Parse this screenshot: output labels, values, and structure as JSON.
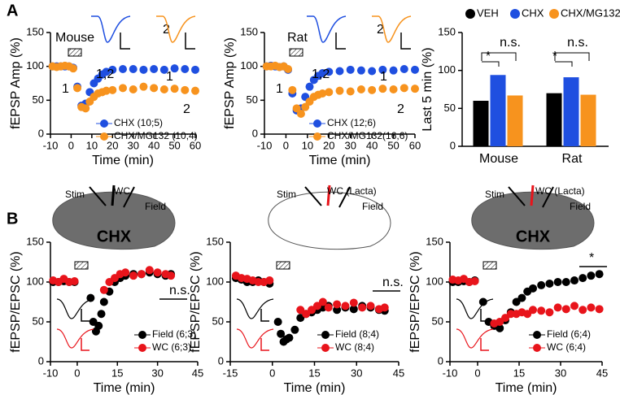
{
  "panel_labels": [
    "A",
    "B"
  ],
  "chart_data": [
    {
      "type": "scatter",
      "ylabel": "fEPSP Amp (%)",
      "xlabel": "Time (min)",
      "xlim": [
        -10,
        60
      ],
      "xticks": [
        -10,
        0,
        10,
        20,
        30,
        40,
        50,
        60
      ],
      "ylim": [
        0,
        150
      ],
      "yticks": [
        0,
        50,
        100,
        150
      ],
      "annotations": [
        "Mouse",
        "1,2",
        "2",
        "1",
        "1",
        "2"
      ],
      "x": [
        -9,
        -7,
        -5,
        -3,
        -1,
        1,
        3,
        5,
        7,
        9,
        11,
        13,
        15,
        17,
        20,
        25,
        30,
        35,
        40,
        45,
        50,
        55,
        60
      ],
      "series": [
        {
          "name": "CHX (10;5)",
          "color": "#1f4fe0",
          "values": [
            100,
            100,
            100,
            100,
            100,
            98,
            70,
            42,
            45,
            62,
            75,
            82,
            88,
            92,
            95,
            96,
            96,
            95,
            96,
            95,
            97,
            96,
            95
          ]
        },
        {
          "name": "CHX/MG132 (10;4)",
          "color": "#f7931e",
          "values": [
            100,
            99,
            100,
            101,
            100,
            97,
            68,
            40,
            38,
            48,
            55,
            60,
            62,
            64,
            65,
            68,
            66,
            70,
            68,
            66,
            67,
            65,
            64
          ]
        }
      ]
    },
    {
      "type": "scatter",
      "ylabel": "fEPSP Amp (%)",
      "xlabel": "Time (min)",
      "xlim": [
        -10,
        60
      ],
      "xticks": [
        -10,
        0,
        10,
        20,
        30,
        40,
        50,
        60
      ],
      "ylim": [
        0,
        150
      ],
      "yticks": [
        0,
        50,
        100,
        150
      ],
      "annotations": [
        "Rat",
        "1,2",
        "2",
        "1",
        "1",
        "2"
      ],
      "x": [
        -9,
        -7,
        -5,
        -3,
        -1,
        1,
        3,
        5,
        7,
        9,
        11,
        13,
        15,
        17,
        20,
        25,
        30,
        35,
        40,
        45,
        50,
        55,
        60
      ],
      "series": [
        {
          "name": "CHX (12;6)",
          "color": "#1f4fe0",
          "values": [
            100,
            101,
            100,
            99,
            100,
            95,
            60,
            35,
            38,
            55,
            70,
            80,
            86,
            90,
            92,
            93,
            95,
            94,
            93,
            95,
            94,
            96,
            95
          ]
        },
        {
          "name": "CHX/MG132(16;6)",
          "color": "#f7931e",
          "values": [
            100,
            100,
            101,
            99,
            100,
            96,
            65,
            38,
            30,
            40,
            48,
            55,
            58,
            60,
            62,
            64,
            63,
            66,
            65,
            67,
            66,
            68,
            67
          ]
        }
      ]
    },
    {
      "type": "bar",
      "ylabel": "Last 5 min (%)",
      "categories": [
        "Mouse",
        "Rat"
      ],
      "ylim": [
        0,
        150
      ],
      "yticks": [
        0,
        50,
        100,
        150
      ],
      "annotations": [
        "n.s.",
        "n.s.",
        "*",
        "*"
      ],
      "series": [
        {
          "name": "VEH",
          "color": "#000000",
          "values": [
            60,
            70
          ]
        },
        {
          "name": "CHX",
          "color": "#1f4fe0",
          "values": [
            94,
            91
          ]
        },
        {
          "name": "CHX/MG132",
          "color": "#f7931e",
          "values": [
            67,
            68
          ]
        }
      ]
    },
    {
      "type": "scatter",
      "ylabel": "fEPSP/EPSC (%)",
      "xlabel": "Time (min)",
      "xlim": [
        -10,
        45
      ],
      "xticks": [
        -10,
        0,
        15,
        30,
        45
      ],
      "ylim": [
        0,
        150
      ],
      "yticks": [
        0,
        50,
        100,
        150
      ],
      "annotations": [
        "n.s."
      ],
      "inset_labels": [
        "Stim",
        "WC",
        "Field",
        "CHX"
      ],
      "x": [
        -9,
        -7,
        -5,
        -3,
        -1,
        5,
        6,
        7,
        8,
        9,
        10,
        12,
        14,
        16,
        18,
        21,
        24,
        27,
        30,
        33,
        35
      ],
      "series": [
        {
          "name": "Field (6;3)",
          "color": "#000000",
          "values": [
            100,
            100,
            101,
            100,
            100,
            80,
            50,
            38,
            45,
            60,
            75,
            88,
            100,
            105,
            108,
            110,
            110,
            112,
            110,
            108,
            110
          ]
        },
        {
          "name": "WC (6;3)",
          "color": "#e8141b",
          "values": [
            102,
            100,
            104,
            100,
            101,
            null,
            null,
            null,
            null,
            null,
            90,
            100,
            105,
            110,
            112,
            108,
            110,
            115,
            112,
            110,
            108
          ]
        }
      ]
    },
    {
      "type": "scatter",
      "ylabel": "fEPSP/EPSC (%)",
      "xlabel": "Time (min)",
      "xlim": [
        -15,
        45
      ],
      "xticks": [
        -15,
        0,
        15,
        30,
        45
      ],
      "ylim": [
        0,
        150
      ],
      "yticks": [
        0,
        50,
        100,
        150
      ],
      "annotations": [
        "n.s."
      ],
      "inset_labels": [
        "Stim",
        "WC (Lacta)",
        "Field"
      ],
      "x": [
        -13,
        -11,
        -9,
        -7,
        -5,
        -3,
        -1,
        2,
        3,
        4,
        5,
        6,
        8,
        10,
        12,
        14,
        16,
        18,
        20,
        23,
        26,
        29,
        32,
        35,
        38,
        40
      ],
      "series": [
        {
          "name": "Field (8;4)",
          "color": "#000000",
          "values": [
            105,
            103,
            100,
            100,
            102,
            100,
            98,
            50,
            35,
            25,
            28,
            30,
            40,
            55,
            60,
            62,
            65,
            68,
            70,
            65,
            68,
            66,
            70,
            68,
            65,
            64
          ]
        },
        {
          "name": "WC (8;4)",
          "color": "#e8141b",
          "values": [
            108,
            105,
            104,
            102,
            100,
            100,
            102,
            null,
            null,
            null,
            null,
            null,
            null,
            65,
            60,
            65,
            70,
            75,
            68,
            72,
            70,
            74,
            68,
            70,
            66,
            68
          ]
        }
      ]
    },
    {
      "type": "scatter",
      "ylabel": "fEPSP/EPSC (%)",
      "xlabel": "Time (min)",
      "xlim": [
        -10,
        45
      ],
      "xticks": [
        -10,
        0,
        15,
        30,
        45
      ],
      "ylim": [
        0,
        150
      ],
      "yticks": [
        0,
        50,
        100,
        150
      ],
      "annotations": [
        "*"
      ],
      "inset_labels": [
        "Stim",
        "WC (Lacta)",
        "Field",
        "CHX"
      ],
      "x": [
        -9,
        -7,
        -5,
        -3,
        -1,
        2,
        4,
        6,
        8,
        10,
        12,
        14,
        16,
        18,
        20,
        23,
        26,
        29,
        32,
        35,
        38,
        41,
        44
      ],
      "series": [
        {
          "name": "Field (6;4)",
          "color": "#000000",
          "values": [
            100,
            100,
            101,
            100,
            102,
            75,
            50,
            45,
            42,
            52,
            62,
            75,
            80,
            88,
            92,
            96,
            98,
            100,
            100,
            102,
            105,
            108,
            110
          ]
        },
        {
          "name": "WC (6;4)",
          "color": "#e8141b",
          "values": [
            103,
            102,
            104,
            100,
            101,
            null,
            null,
            48,
            50,
            55,
            60,
            60,
            62,
            60,
            65,
            64,
            62,
            68,
            66,
            70,
            65,
            68,
            66
          ]
        }
      ]
    }
  ]
}
